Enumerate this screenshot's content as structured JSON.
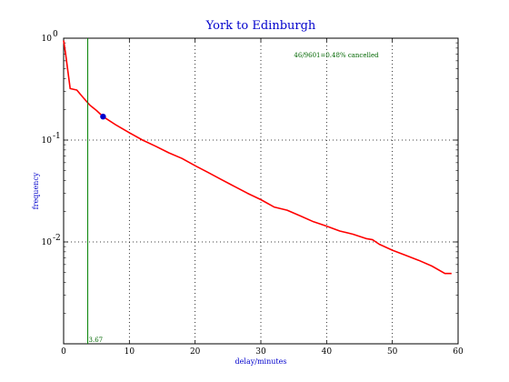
{
  "chart_data": {
    "type": "line",
    "title": "York to Edinburgh",
    "xlabel": "delay/minutes",
    "ylabel": "frequency",
    "xlim": [
      0,
      60
    ],
    "ylim": [
      0.001,
      1
    ],
    "yscale": "log",
    "x_ticks": [
      "0",
      "10",
      "20",
      "30",
      "40",
      "50",
      "60"
    ],
    "y_ticks": [
      {
        "value": 1,
        "base": "10",
        "exp": "0"
      },
      {
        "value": 0.1,
        "base": "10",
        "exp": "-1"
      },
      {
        "value": 0.01,
        "base": "10",
        "exp": "-2"
      }
    ],
    "grid": true,
    "annotation": "46/9601=0.48% cancelled",
    "marker_line": {
      "x": 3.67,
      "label": "3.67",
      "color": "#008000"
    },
    "marker_point": {
      "x": 6,
      "y": 0.17,
      "color": "#0000cc"
    },
    "series": [
      {
        "color": "#ff0000",
        "x": [
          0,
          0.3,
          1,
          2,
          3,
          4,
          5,
          6,
          8,
          10,
          12,
          14,
          16,
          18,
          20,
          22,
          24,
          26,
          28,
          30,
          32,
          34,
          36,
          38,
          40,
          42,
          44,
          46,
          47,
          48,
          50,
          52,
          54,
          56,
          58,
          59
        ],
        "y": [
          0.95,
          0.7,
          0.32,
          0.31,
          0.26,
          0.22,
          0.195,
          0.17,
          0.14,
          0.118,
          0.1,
          0.087,
          0.075,
          0.066,
          0.056,
          0.048,
          0.041,
          0.035,
          0.03,
          0.026,
          0.022,
          0.0205,
          0.018,
          0.0158,
          0.0143,
          0.0128,
          0.0119,
          0.0108,
          0.0105,
          0.0095,
          0.0083,
          0.0074,
          0.0066,
          0.0058,
          0.0049,
          0.0049
        ]
      }
    ]
  }
}
